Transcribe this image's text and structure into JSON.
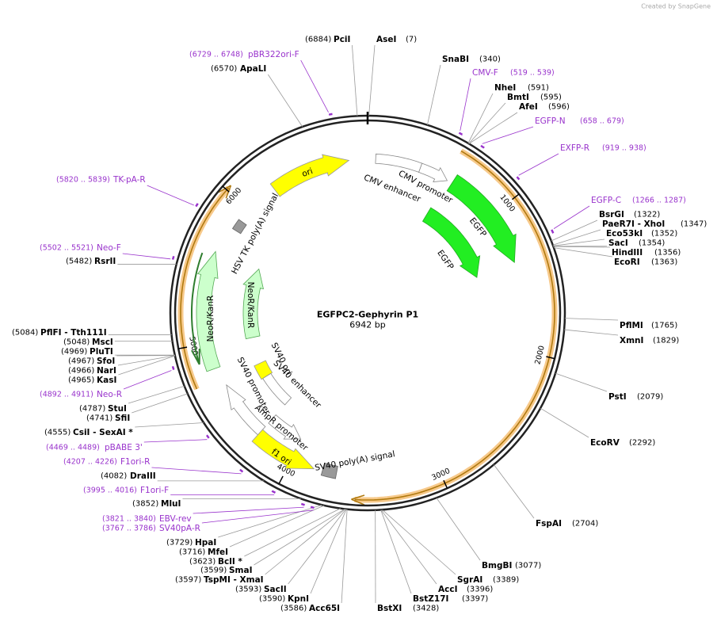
{
  "header": {
    "credit": "Created by SnapGene"
  },
  "map": {
    "title": "EGFPC2-Gephyrin P1",
    "length": "6942 bp",
    "scale_ticks": [
      1000,
      2000,
      3000,
      4000,
      5000,
      6000
    ],
    "features": [
      "ori",
      "CMV enhancer",
      "CMV promoter",
      "EGFP",
      "EGFP",
      "HSV TK poly(A) signal",
      "NeoR/KanR",
      "NeoR/KanR",
      "SV40 ori",
      "SV40 enhancer",
      "SV40 promoter",
      "AmpR promoter",
      "f1 ori",
      "SV40 poly(A) signal"
    ],
    "enzymes": [
      {
        "name": "PciI",
        "position": "(6884)"
      },
      {
        "name": "AseI",
        "position": "(7)"
      },
      {
        "name": "SnaBI",
        "position": "(340)"
      },
      {
        "name": "NheI",
        "position": "(591)"
      },
      {
        "name": "BmtI",
        "position": "(595)"
      },
      {
        "name": "AfeI",
        "position": "(596)"
      },
      {
        "name": "ApaLI",
        "position": "(6570)"
      },
      {
        "name": "BsrGI",
        "position": "(1322)"
      },
      {
        "name": "PaeR7I - XhoI",
        "position": "(1347)"
      },
      {
        "name": "Eco53kI",
        "position": "(1352)"
      },
      {
        "name": "SacI",
        "position": "(1354)"
      },
      {
        "name": "HindIII",
        "position": "(1356)"
      },
      {
        "name": "EcoRI",
        "position": "(1363)"
      },
      {
        "name": "PflMI",
        "position": "(1765)"
      },
      {
        "name": "XmnI",
        "position": "(1829)"
      },
      {
        "name": "PstI",
        "position": "(2079)"
      },
      {
        "name": "EcoRV",
        "position": "(2292)"
      },
      {
        "name": "FspAI",
        "position": "(2704)"
      },
      {
        "name": "BmgBI",
        "position": "(3077)"
      },
      {
        "name": "SgrAI",
        "position": "(3389)"
      },
      {
        "name": "AccI",
        "position": "(3396)"
      },
      {
        "name": "BstZ17I",
        "position": "(3397)"
      },
      {
        "name": "BstXI",
        "position": "(3428)"
      },
      {
        "name": "RsrII",
        "position": "(5482)"
      },
      {
        "name": "PflFI - Tth111I",
        "position": "(5084)"
      },
      {
        "name": "MscI",
        "position": "(5048)"
      },
      {
        "name": "PluTI",
        "position": "(4969)"
      },
      {
        "name": "SfoI",
        "position": "(4967)"
      },
      {
        "name": "NarI",
        "position": "(4966)"
      },
      {
        "name": "KasI",
        "position": "(4965)"
      },
      {
        "name": "StuI",
        "position": "(4787)"
      },
      {
        "name": "SfiI",
        "position": "(4741)"
      },
      {
        "name": "CsiI - SexAI *",
        "position": "(4555)"
      },
      {
        "name": "DraIII",
        "position": "(4082)"
      },
      {
        "name": "MluI",
        "position": "(3852)"
      },
      {
        "name": "HpaI",
        "position": "(3729)"
      },
      {
        "name": "MfeI",
        "position": "(3716)"
      },
      {
        "name": "BclI *",
        "position": "(3623)"
      },
      {
        "name": "SmaI",
        "position": "(3599)"
      },
      {
        "name": "TspMI - XmaI",
        "position": "(3597)"
      },
      {
        "name": "SacII",
        "position": "(3593)"
      },
      {
        "name": "KpnI",
        "position": "(3590)"
      },
      {
        "name": "Acc65I",
        "position": "(3586)"
      }
    ],
    "primers": [
      {
        "name": "pBR322ori-F",
        "range": "(6729 .. 6748)"
      },
      {
        "name": "CMV-F",
        "range": "(519 .. 539)"
      },
      {
        "name": "EGFP-N",
        "range": "(658 .. 679)"
      },
      {
        "name": "EXFP-R",
        "range": "(919 .. 938)"
      },
      {
        "name": "EGFP-C",
        "range": "(1266 .. 1287)"
      },
      {
        "name": "TK-pA-R",
        "range": "(5820 .. 5839)"
      },
      {
        "name": "Neo-F",
        "range": "(5502 .. 5521)"
      },
      {
        "name": "Neo-R",
        "range": "(4892 .. 4911)"
      },
      {
        "name": "pBABE 3'",
        "range": "(4469 .. 4489)"
      },
      {
        "name": "F1ori-R",
        "range": "(4207 .. 4226)"
      },
      {
        "name": "F1ori-F",
        "range": "(3995 .. 4016)"
      },
      {
        "name": "EBV-rev",
        "range": "(3821 .. 3840)"
      },
      {
        "name": "SV40pA-R",
        "range": "(3767 .. 3786)"
      }
    ]
  }
}
